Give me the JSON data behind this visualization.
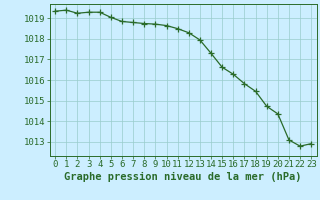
{
  "hours": [
    0,
    1,
    2,
    3,
    4,
    5,
    6,
    7,
    8,
    9,
    10,
    11,
    12,
    13,
    14,
    15,
    16,
    17,
    18,
    19,
    20,
    21,
    22,
    23
  ],
  "pressure": [
    1019.35,
    1019.4,
    1019.25,
    1019.3,
    1019.3,
    1019.05,
    1018.85,
    1018.8,
    1018.75,
    1018.72,
    1018.65,
    1018.5,
    1018.3,
    1017.95,
    1017.3,
    1016.62,
    1016.28,
    1015.82,
    1015.45,
    1014.72,
    1014.35,
    1013.08,
    1012.78,
    1012.9
  ],
  "line_color": "#2a6b2a",
  "marker": "+",
  "marker_size": 4,
  "bg_color": "#cceeff",
  "grid_color": "#99cccc",
  "ylabel_ticks": [
    1013,
    1014,
    1015,
    1016,
    1017,
    1018,
    1019
  ],
  "ylim": [
    1012.3,
    1019.7
  ],
  "xlim": [
    -0.5,
    23.5
  ],
  "xlabel": "Graphe pression niveau de la mer (hPa)",
  "xlabel_fontsize": 7.5,
  "tick_fontsize": 6.5,
  "axis_color": "#2a6b2a",
  "spine_color": "#2a6b2a"
}
